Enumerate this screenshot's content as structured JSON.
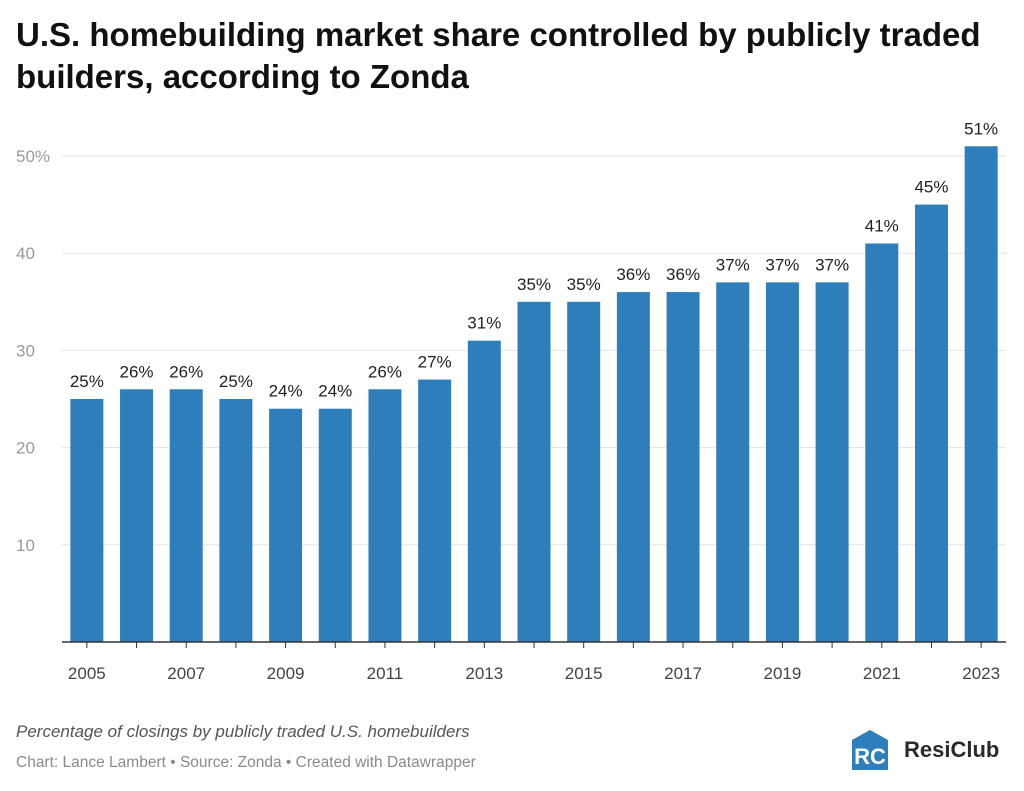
{
  "header": {
    "title": "U.S. homebuilding market share controlled by publicly traded builders, according to Zonda"
  },
  "chart_data": {
    "type": "bar",
    "categories": [
      "2005",
      "2006",
      "2007",
      "2008",
      "2009",
      "2010",
      "2011",
      "2012",
      "2013",
      "2014",
      "2015",
      "2016",
      "2017",
      "2018",
      "2019",
      "2020",
      "2021",
      "2022",
      "2023"
    ],
    "values": [
      25,
      26,
      26,
      25,
      24,
      24,
      26,
      27,
      31,
      35,
      35,
      36,
      36,
      37,
      37,
      37,
      41,
      45,
      51
    ],
    "value_labels": [
      "25%",
      "26%",
      "26%",
      "25%",
      "24%",
      "24%",
      "26%",
      "27%",
      "31%",
      "35%",
      "35%",
      "36%",
      "36%",
      "37%",
      "37%",
      "37%",
      "41%",
      "45%",
      "51%"
    ],
    "x_tick_labels": [
      "2005",
      "2007",
      "2009",
      "2011",
      "2013",
      "2015",
      "2017",
      "2019",
      "2021",
      "2023"
    ],
    "y_ticks": [
      10,
      20,
      30,
      40,
      50
    ],
    "y_tick_labels": [
      "10",
      "20",
      "30",
      "40",
      "50%"
    ],
    "ylim": [
      0,
      52
    ],
    "grid": true,
    "bar_color": "#2e7ebb",
    "xlabel": "",
    "ylabel": ""
  },
  "footer": {
    "description": "Percentage of closings by publicly traded U.S. homebuilders",
    "source": "Chart: Lance Lambert • Source: Zonda • Created with Datawrapper"
  },
  "logo": {
    "text": "ResiClub",
    "mark_letters": "RC",
    "accent_color": "#2e7ebb"
  }
}
